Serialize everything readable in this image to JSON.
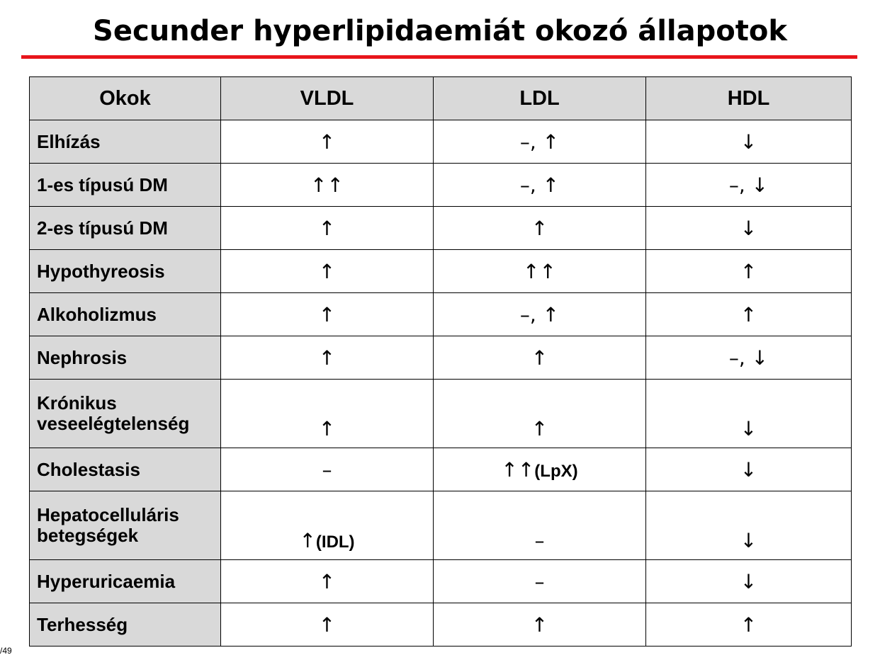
{
  "title": "Secunder hyperlipidaemiát okozó állapotok",
  "colors": {
    "accent_rule": "#e8151b",
    "header_bg": "#d9d9d9",
    "cause_bg": "#d9d9d9",
    "value_bg": "#ffffff"
  },
  "table": {
    "headers": [
      "Okok",
      "VLDL",
      "LDL",
      "HDL"
    ],
    "rows": [
      {
        "cause": "Elhízás",
        "vldl": "↑",
        "ldl": "–, ↑",
        "hdl": "↓"
      },
      {
        "cause": "1-es típusú DM",
        "vldl": "↑↑",
        "ldl": "–, ↑",
        "hdl": "–, ↓"
      },
      {
        "cause": "2-es típusú DM",
        "vldl": "↑",
        "ldl": "↑",
        "hdl": "↓"
      },
      {
        "cause": "Hypothyreosis",
        "vldl": "↑",
        "ldl": "↑↑",
        "hdl": "↑"
      },
      {
        "cause": "Alkoholizmus",
        "vldl": "↑",
        "ldl": "–, ↑",
        "hdl": "↑"
      },
      {
        "cause": "Nephrosis",
        "vldl": "↑",
        "ldl": "↑",
        "hdl": "–, ↓"
      },
      {
        "cause_line1": "Krónikus",
        "cause_line2": "veseelégtelenség",
        "vldl": "↑",
        "ldl": "↑",
        "hdl": "↓"
      },
      {
        "cause": "Cholestasis",
        "vldl": "–",
        "ldl_arrow": "↑↑",
        "ldl_note": "(LpX)",
        "hdl": "↓"
      },
      {
        "cause_line1": "Hepatocelluláris",
        "cause_line2": "betegségek",
        "vldl_arrow": "↑",
        "vldl_note": "(IDL)",
        "ldl": "–",
        "hdl": "↓"
      },
      {
        "cause": "Hyperuricaemia",
        "vldl": "↑",
        "ldl": "–",
        "hdl": "↓"
      },
      {
        "cause": "Terhesség",
        "vldl": "↑",
        "ldl": "↑",
        "hdl": "↑"
      }
    ]
  },
  "slide_number": "/49"
}
